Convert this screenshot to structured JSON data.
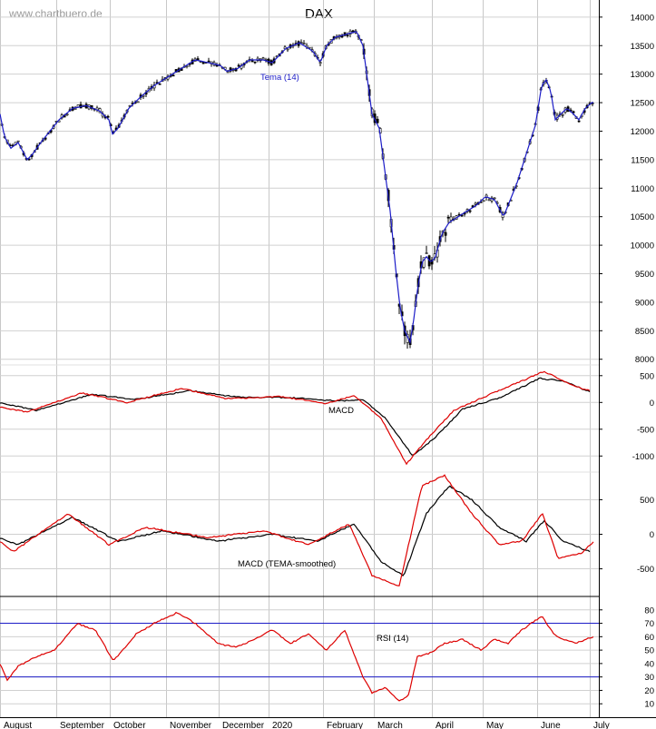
{
  "watermark": "www.chartbuero.de",
  "chart_data": [
    {
      "type": "candlestick",
      "title": "DAX",
      "overlay_label": "Tema (14)",
      "ylim": [
        7900,
        14300
      ],
      "yticks": [
        14000,
        13500,
        13000,
        12500,
        12000,
        11500,
        11000,
        10500,
        10000,
        9500,
        9000,
        8500,
        8000
      ],
      "colors": {
        "price": "#000000",
        "tema": "#1c1cc8"
      },
      "anchors": [
        [
          0,
          12300
        ],
        [
          5,
          11900
        ],
        [
          12,
          11700
        ],
        [
          20,
          11800
        ],
        [
          30,
          11500
        ],
        [
          36,
          11600
        ],
        [
          45,
          11800
        ],
        [
          55,
          12000
        ],
        [
          65,
          12200
        ],
        [
          80,
          12400
        ],
        [
          95,
          12450
        ],
        [
          110,
          12350
        ],
        [
          120,
          12200
        ],
        [
          124,
          11950
        ],
        [
          130,
          12050
        ],
        [
          142,
          12400
        ],
        [
          155,
          12600
        ],
        [
          170,
          12800
        ],
        [
          185,
          12950
        ],
        [
          200,
          13100
        ],
        [
          215,
          13250
        ],
        [
          230,
          13200
        ],
        [
          243,
          13150
        ],
        [
          250,
          13050
        ],
        [
          262,
          13100
        ],
        [
          275,
          13250
        ],
        [
          290,
          13250
        ],
        [
          300,
          13200
        ],
        [
          315,
          13450
        ],
        [
          330,
          13550
        ],
        [
          345,
          13400
        ],
        [
          353,
          13200
        ],
        [
          360,
          13500
        ],
        [
          370,
          13650
        ],
        [
          382,
          13700
        ],
        [
          393,
          13750
        ],
        [
          400,
          13500
        ],
        [
          405,
          12900
        ],
        [
          410,
          12300
        ],
        [
          418,
          12050
        ],
        [
          425,
          11200
        ],
        [
          430,
          10600
        ],
        [
          436,
          9600
        ],
        [
          441,
          8900
        ],
        [
          446,
          8500
        ],
        [
          452,
          8300
        ],
        [
          456,
          8700
        ],
        [
          460,
          9200
        ],
        [
          465,
          9700
        ],
        [
          470,
          9800
        ],
        [
          475,
          9700
        ],
        [
          480,
          9800
        ],
        [
          487,
          10200
        ],
        [
          495,
          10400
        ],
        [
          505,
          10500
        ],
        [
          515,
          10600
        ],
        [
          525,
          10700
        ],
        [
          535,
          10850
        ],
        [
          545,
          10800
        ],
        [
          555,
          10500
        ],
        [
          560,
          10700
        ],
        [
          570,
          11100
        ],
        [
          580,
          11600
        ],
        [
          590,
          12100
        ],
        [
          597,
          12800
        ],
        [
          602,
          12900
        ],
        [
          607,
          12700
        ],
        [
          612,
          12200
        ],
        [
          618,
          12300
        ],
        [
          625,
          12400
        ],
        [
          632,
          12300
        ],
        [
          638,
          12200
        ],
        [
          645,
          12400
        ],
        [
          652,
          12500
        ]
      ]
    },
    {
      "type": "line",
      "label": "MACD",
      "ylim": [
        -1300,
        700
      ],
      "yticks": [
        500,
        0,
        -500,
        -1000
      ],
      "series": [
        {
          "color": "#000000",
          "values": [
            [
              0,
              0
            ],
            [
              40,
              -150
            ],
            [
              100,
              150
            ],
            [
              150,
              60
            ],
            [
              210,
              220
            ],
            [
              260,
              100
            ],
            [
              320,
              90
            ],
            [
              370,
              30
            ],
            [
              400,
              50
            ],
            [
              425,
              -300
            ],
            [
              455,
              -1000
            ],
            [
              480,
              -650
            ],
            [
              510,
              -120
            ],
            [
              550,
              80
            ],
            [
              595,
              450
            ],
            [
              620,
              400
            ],
            [
              650,
              200
            ]
          ]
        },
        {
          "color": "#dd0000",
          "values": [
            [
              0,
              -80
            ],
            [
              30,
              -180
            ],
            [
              90,
              180
            ],
            [
              140,
              0
            ],
            [
              200,
              260
            ],
            [
              250,
              70
            ],
            [
              310,
              110
            ],
            [
              360,
              -20
            ],
            [
              390,
              130
            ],
            [
              420,
              -300
            ],
            [
              448,
              -1150
            ],
            [
              470,
              -700
            ],
            [
              500,
              -150
            ],
            [
              540,
              150
            ],
            [
              600,
              580
            ],
            [
              630,
              320
            ],
            [
              650,
              220
            ]
          ]
        }
      ]
    },
    {
      "type": "line",
      "label": "MACD (TEMA-smoothed)",
      "ylim": [
        -900,
        900
      ],
      "yticks": [
        500,
        0,
        -500
      ],
      "series": [
        {
          "color": "#000000",
          "values": [
            [
              0,
              -50
            ],
            [
              20,
              -150
            ],
            [
              80,
              250
            ],
            [
              130,
              -100
            ],
            [
              180,
              50
            ],
            [
              240,
              -100
            ],
            [
              300,
              0
            ],
            [
              350,
              -100
            ],
            [
              390,
              150
            ],
            [
              420,
              -400
            ],
            [
              445,
              -600
            ],
            [
              470,
              300
            ],
            [
              495,
              700
            ],
            [
              520,
              500
            ],
            [
              550,
              100
            ],
            [
              580,
              -100
            ],
            [
              600,
              200
            ],
            [
              620,
              -100
            ],
            [
              650,
              -250
            ]
          ]
        },
        {
          "color": "#dd0000",
          "values": [
            [
              0,
              -100
            ],
            [
              15,
              -250
            ],
            [
              75,
              300
            ],
            [
              120,
              -150
            ],
            [
              160,
              100
            ],
            [
              230,
              -50
            ],
            [
              290,
              50
            ],
            [
              340,
              -150
            ],
            [
              385,
              150
            ],
            [
              410,
              -600
            ],
            [
              440,
              -750
            ],
            [
              465,
              700
            ],
            [
              490,
              850
            ],
            [
              520,
              300
            ],
            [
              550,
              -150
            ],
            [
              575,
              -100
            ],
            [
              598,
              300
            ],
            [
              615,
              -350
            ],
            [
              640,
              -280
            ],
            [
              655,
              -100
            ]
          ]
        }
      ]
    },
    {
      "type": "line",
      "label": "RSI (14)",
      "ylim": [
        0,
        90
      ],
      "yticks": [
        80,
        70,
        60,
        50,
        40,
        30,
        20,
        10
      ],
      "reference_lines": [
        70,
        30
      ],
      "series": [
        {
          "color": "#dd0000",
          "values": [
            [
              0,
              40
            ],
            [
              8,
              28
            ],
            [
              20,
              38
            ],
            [
              40,
              45
            ],
            [
              60,
              50
            ],
            [
              85,
              70
            ],
            [
              105,
              65
            ],
            [
              125,
              42
            ],
            [
              150,
              62
            ],
            [
              170,
              70
            ],
            [
              195,
              78
            ],
            [
              215,
              70
            ],
            [
              240,
              55
            ],
            [
              260,
              52
            ],
            [
              280,
              58
            ],
            [
              300,
              65
            ],
            [
              320,
              55
            ],
            [
              340,
              62
            ],
            [
              360,
              50
            ],
            [
              380,
              65
            ],
            [
              400,
              30
            ],
            [
              410,
              18
            ],
            [
              425,
              22
            ],
            [
              440,
              12
            ],
            [
              450,
              16
            ],
            [
              460,
              45
            ],
            [
              475,
              48
            ],
            [
              490,
              55
            ],
            [
              510,
              58
            ],
            [
              530,
              50
            ],
            [
              545,
              58
            ],
            [
              560,
              55
            ],
            [
              575,
              65
            ],
            [
              590,
              72
            ],
            [
              598,
              75
            ],
            [
              610,
              62
            ],
            [
              620,
              58
            ],
            [
              635,
              55
            ],
            [
              645,
              58
            ],
            [
              655,
              60
            ]
          ]
        }
      ]
    },
    {
      "type": "axis",
      "x_month_labels": [
        "August",
        "September",
        "October",
        "November",
        "December",
        "2020",
        "February",
        "March",
        "April",
        "May",
        "June",
        "July"
      ]
    }
  ]
}
